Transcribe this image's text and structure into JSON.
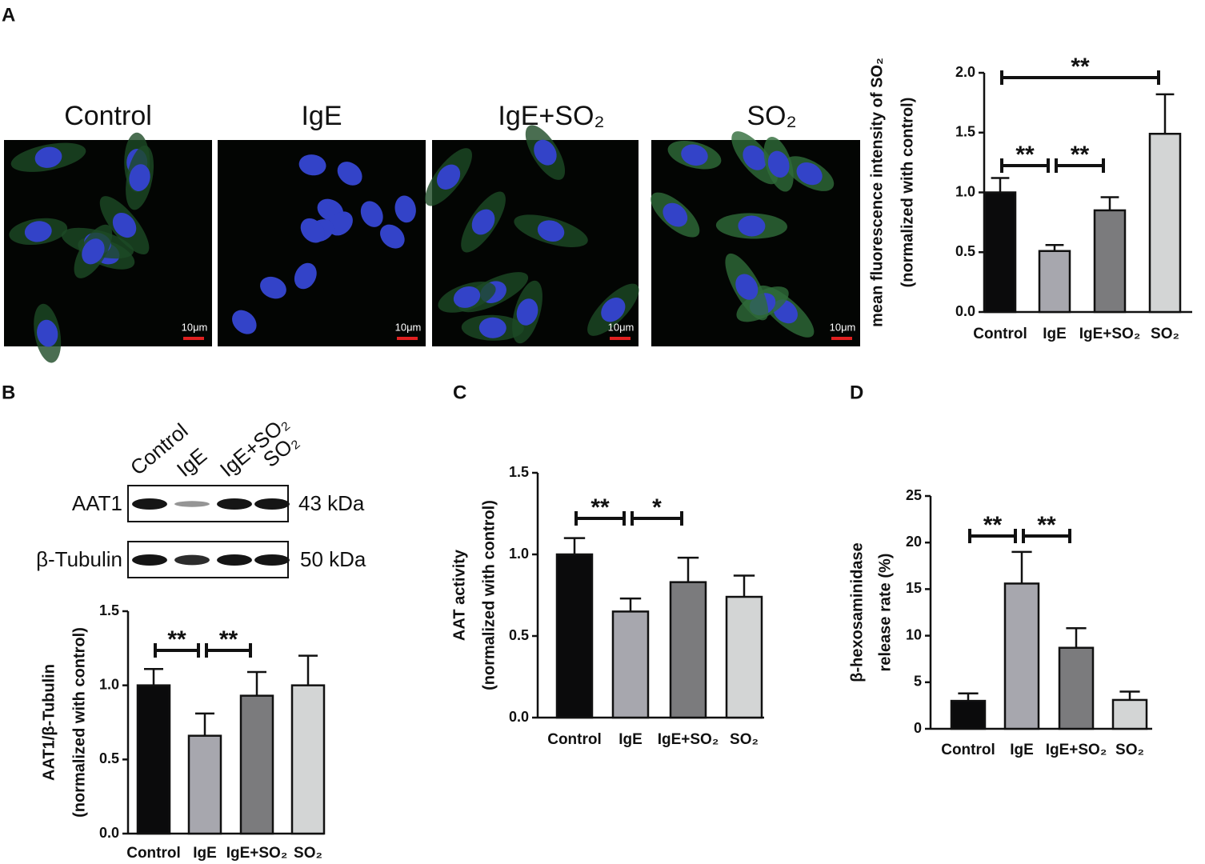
{
  "panel_labels": [
    "A",
    "B",
    "C",
    "D"
  ],
  "micrographs": {
    "labels": [
      "Control",
      "IgE",
      "IgE+SO₂",
      "SO₂"
    ],
    "scale_bar": "10μm"
  },
  "western_blot": {
    "lanes": [
      "Control",
      "IgE",
      "IgE+SO₂",
      "SO₂"
    ],
    "bands": [
      {
        "protein": "AAT1",
        "size": "43 kDa"
      },
      {
        "protein": "β-Tubulin",
        "size": "50 kDa"
      }
    ]
  },
  "chart_data": [
    {
      "type": "bar",
      "y_label": [
        "mean fluorescence intensity of SO₂",
        "(normalized with control)"
      ],
      "categories": [
        "Control",
        "IgE",
        "IgE+SO₂",
        "SO₂"
      ],
      "values": [
        1.0,
        0.51,
        0.85,
        1.49
      ],
      "errors": [
        0.12,
        0.05,
        0.11,
        0.33
      ],
      "colors": [
        "#0b0b0c",
        "#a7a7ae",
        "#7b7b7d",
        "#d3d5d5"
      ],
      "ylim": [
        0,
        2
      ],
      "yticks": [
        {
          "value": 0,
          "label": "0.0"
        },
        0.5,
        {
          "value": 1,
          "label": "1.0"
        },
        1.5,
        {
          "value": 2,
          "label": "2.0"
        }
      ],
      "comparisons": [
        {
          "between": [
            "Control",
            "SO₂"
          ],
          "label": "**"
        },
        {
          "between": [
            "Control",
            "IgE"
          ],
          "label": "**"
        },
        {
          "between": [
            "IgE",
            "IgE+SO₂"
          ],
          "label": "**"
        }
      ]
    },
    {
      "type": "bar",
      "y_label": [
        "AAT1/β-Tubulin",
        "(normalized with control)"
      ],
      "categories": [
        "Control",
        "IgE",
        "IgE+SO₂",
        "SO₂"
      ],
      "values": [
        1.0,
        0.66,
        0.93,
        1.0
      ],
      "errors": [
        0.11,
        0.15,
        0.16,
        0.2
      ],
      "colors": [
        "#0b0b0c",
        "#a7a7ae",
        "#7b7b7d",
        "#d3d5d5"
      ],
      "ylim": [
        0,
        1.5
      ],
      "yticks": [
        {
          "value": 0,
          "label": "0.0"
        },
        0.5,
        {
          "value": 1,
          "label": "1.0"
        },
        1.5
      ],
      "comparisons": [
        {
          "between": [
            "Control",
            "IgE"
          ],
          "label": "**"
        },
        {
          "between": [
            "IgE",
            "IgE+SO₂"
          ],
          "label": "**"
        }
      ]
    },
    {
      "type": "bar",
      "y_label": [
        "AAT activity",
        "(normalized with control)"
      ],
      "categories": [
        "Control",
        "IgE",
        "IgE+SO₂",
        "SO₂"
      ],
      "values": [
        1.0,
        0.65,
        0.83,
        0.74
      ],
      "errors": [
        0.1,
        0.08,
        0.15,
        0.13
      ],
      "colors": [
        "#0b0b0c",
        "#a7a7ae",
        "#7b7b7d",
        "#d3d5d5"
      ],
      "ylim": [
        0,
        1.5
      ],
      "yticks": [
        {
          "value": 0,
          "label": "0.0"
        },
        0.5,
        {
          "value": 1,
          "label": "1.0"
        },
        1.5
      ],
      "comparisons": [
        {
          "between": [
            "Control",
            "IgE"
          ],
          "label": "**"
        },
        {
          "between": [
            "IgE",
            "IgE+SO₂"
          ],
          "label": "*"
        }
      ]
    },
    {
      "type": "bar",
      "y_label": [
        "β-hexosaminidase",
        "release rate (%)"
      ],
      "categories": [
        "Control",
        "IgE",
        "IgE+SO₂",
        "SO₂"
      ],
      "values": [
        3.0,
        15.6,
        8.7,
        3.1
      ],
      "errors": [
        0.8,
        3.4,
        2.1,
        0.9
      ],
      "colors": [
        "#0b0b0c",
        "#a7a7ae",
        "#7b7b7d",
        "#d3d5d5"
      ],
      "ylim": [
        0,
        25
      ],
      "yticks": [
        0,
        5,
        10,
        15,
        20,
        25
      ],
      "comparisons": [
        {
          "between": [
            "Control",
            "IgE"
          ],
          "label": "**"
        },
        {
          "between": [
            "IgE",
            "IgE+SO₂"
          ],
          "label": "**"
        }
      ]
    }
  ]
}
